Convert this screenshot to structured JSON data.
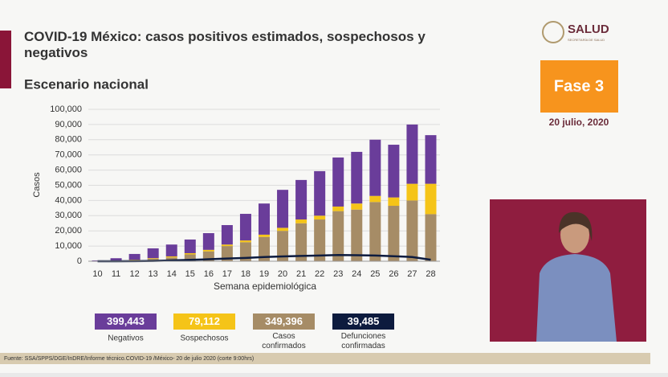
{
  "header": {
    "title": "COVID-19 México: casos positivos estimados, sospechosos y negativos",
    "subtitle": "Escenario nacional"
  },
  "logo": {
    "text": "SALUD",
    "subtext": "SECRETARÍA DE SALUD"
  },
  "phase": "Fase 3",
  "date": "20 julio, 2020",
  "footer": "Fuente: SSA/SPPS/DGE/InDRE/Informe técnico.COVID-19 /México- 20 de julio 2020 (corte 9:00hrs)",
  "chart_data": {
    "type": "bar",
    "stacked": true,
    "xlabel": "Semana epidemiológica",
    "ylabel": "Casos",
    "categories": [
      "10",
      "11",
      "12",
      "13",
      "14",
      "15",
      "16",
      "17",
      "18",
      "19",
      "20",
      "21",
      "22",
      "23",
      "24",
      "25",
      "26",
      "27",
      "28"
    ],
    "ylim": [
      0,
      100000
    ],
    "yticks": [
      0,
      {
        "value": 10000,
        "label": "10,000"
      },
      {
        "value": 20000,
        "label": "20,000"
      },
      {
        "value": 30000,
        "label": "30,000"
      },
      {
        "value": 40000,
        "label": "40,000"
      },
      {
        "value": 50000,
        "label": "50,000"
      },
      {
        "value": 60000,
        "label": "60,000"
      },
      {
        "value": 70000,
        "label": "70,000"
      },
      {
        "value": 80000,
        "label": "80,000"
      },
      {
        "value": 90000,
        "label": "90,000"
      },
      {
        "value": 100000,
        "label": "100,000"
      }
    ],
    "grid": true,
    "series": [
      {
        "name": "Negativos",
        "color": "#6a3d9a",
        "total": "399,443",
        "values": [
          400,
          1500,
          3800,
          6500,
          7800,
          9000,
          11000,
          12800,
          17500,
          20500,
          25000,
          26000,
          29300,
          32300,
          34000,
          37000,
          34700,
          39000,
          32000
        ]
      },
      {
        "name": "Sospechosos",
        "color": "#f5c418",
        "total": "79,112",
        "values": [
          50,
          200,
          400,
          500,
          700,
          800,
          1000,
          1000,
          1200,
          1500,
          2000,
          2500,
          2500,
          3000,
          4000,
          4000,
          5500,
          11000,
          20000
        ]
      },
      {
        "name": "Casos confirmados",
        "color": "#a68c66",
        "total": "349,396",
        "values": [
          100,
          300,
          600,
          1500,
          2500,
          4500,
          6500,
          10000,
          12500,
          16000,
          20000,
          25000,
          27500,
          33000,
          34000,
          39000,
          36500,
          40000,
          31000
        ]
      },
      {
        "name": "Defunciones confirmadas",
        "color": "#0d1b3e",
        "mark": "line",
        "total": "39,485",
        "values": [
          0,
          0,
          50,
          200,
          500,
          900,
          1300,
          1800,
          2200,
          2800,
          3200,
          3500,
          3800,
          4100,
          4000,
          3800,
          3300,
          2800,
          1000
        ]
      }
    ]
  }
}
